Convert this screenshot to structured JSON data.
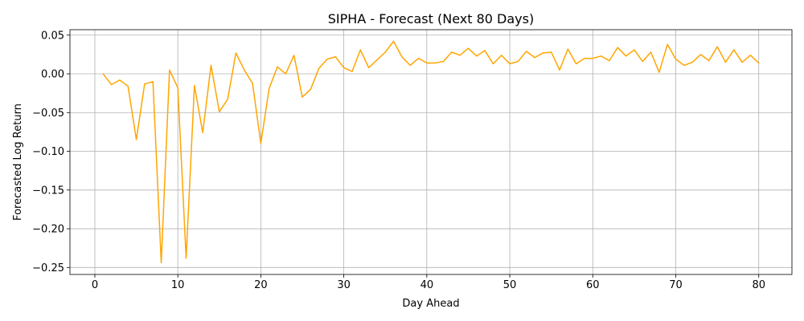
{
  "chart_data": {
    "type": "line",
    "title": "SIPHA - Forecast (Next 80 Days)",
    "xlabel": "Day Ahead",
    "ylabel": "Forecasted Log Return",
    "xlim": [
      -3,
      84
    ],
    "ylim": [
      -0.259,
      0.057
    ],
    "grid": true,
    "x_ticks": [
      0,
      10,
      20,
      30,
      40,
      50,
      60,
      70,
      80
    ],
    "y_ticks": [
      0.05,
      0.0,
      -0.05,
      -0.1,
      -0.15,
      -0.2,
      -0.25
    ],
    "x_tick_labels": [
      "0",
      "10",
      "20",
      "30",
      "40",
      "50",
      "60",
      "70",
      "80"
    ],
    "y_tick_labels": [
      "0.05",
      "0.00",
      "−0.05",
      "−0.10",
      "−0.15",
      "−0.20",
      "−0.25"
    ],
    "series": [
      {
        "color": "#ffa500",
        "x": [
          1,
          2,
          3,
          4,
          5,
          6,
          7,
          8,
          9,
          10,
          11,
          12,
          13,
          14,
          15,
          16,
          17,
          18,
          19,
          20,
          21,
          22,
          23,
          24,
          25,
          26,
          27,
          28,
          29,
          30,
          31,
          32,
          33,
          34,
          35,
          36,
          37,
          38,
          39,
          40,
          41,
          42,
          43,
          44,
          45,
          46,
          47,
          48,
          49,
          50,
          51,
          52,
          53,
          54,
          55,
          56,
          57,
          58,
          59,
          60,
          61,
          62,
          63,
          64,
          65,
          66,
          67,
          68,
          69,
          70,
          71,
          72,
          73,
          74,
          75,
          76,
          77,
          78,
          79,
          80
        ],
        "y": [
          0.0,
          -0.014,
          -0.008,
          -0.016,
          -0.085,
          -0.013,
          -0.01,
          -0.244,
          0.005,
          -0.018,
          -0.238,
          -0.015,
          -0.076,
          0.011,
          -0.049,
          -0.033,
          0.027,
          0.005,
          -0.012,
          -0.09,
          -0.019,
          0.009,
          0.0,
          0.024,
          -0.03,
          -0.02,
          0.007,
          0.019,
          0.022,
          0.008,
          0.003,
          0.031,
          0.008,
          0.018,
          0.028,
          0.042,
          0.022,
          0.011,
          0.02,
          0.014,
          0.014,
          0.016,
          0.028,
          0.024,
          0.033,
          0.023,
          0.03,
          0.013,
          0.024,
          0.013,
          0.016,
          0.029,
          0.021,
          0.027,
          0.028,
          0.005,
          0.032,
          0.013,
          0.02,
          0.02,
          0.023,
          0.017,
          0.034,
          0.023,
          0.031,
          0.016,
          0.028,
          0.002,
          0.038,
          0.019,
          0.011,
          0.015,
          0.025,
          0.017,
          0.035,
          0.015,
          0.031,
          0.015,
          0.024,
          0.014
        ]
      }
    ]
  }
}
